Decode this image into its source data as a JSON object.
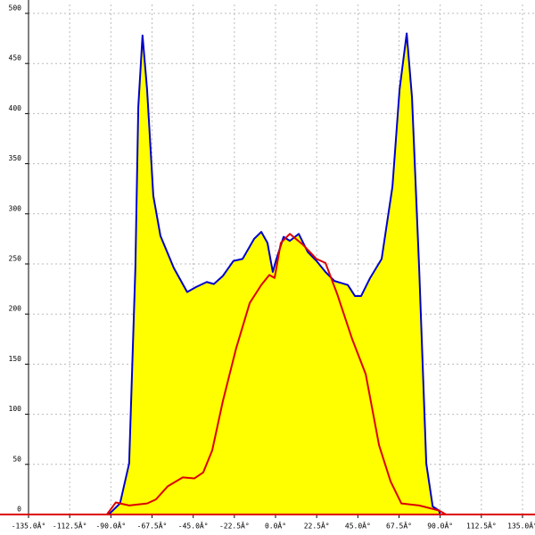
{
  "chart_data": {
    "type": "area-line",
    "xlim": [
      -135,
      135
    ],
    "ylim": [
      0,
      500
    ],
    "xticks": [
      {
        "value": -135,
        "label": "-135.0Â°"
      },
      {
        "value": -112.5,
        "label": "-112.5Â°"
      },
      {
        "value": -90,
        "label": "-90.0Â°"
      },
      {
        "value": -67.5,
        "label": "-67.5Â°"
      },
      {
        "value": -45,
        "label": "-45.0Â°"
      },
      {
        "value": -22.5,
        "label": "-22.5Â°"
      },
      {
        "value": 0,
        "label": "0.0Â°"
      },
      {
        "value": 22.5,
        "label": "22.5Â°"
      },
      {
        "value": 45,
        "label": "45.0Â°"
      },
      {
        "value": 67.5,
        "label": "67.5Â°"
      },
      {
        "value": 90,
        "label": "90.0Â°"
      },
      {
        "value": 112.5,
        "label": "112.5Â°"
      },
      {
        "value": 135,
        "label": "135.0Â°"
      }
    ],
    "yticks": [
      0,
      50,
      100,
      150,
      200,
      250,
      300,
      350,
      400,
      450,
      500
    ],
    "grid": true,
    "axis_color": "#dd0000",
    "series": [
      {
        "color": "#0000cc",
        "fill": "#ffff00",
        "x": [
          -91.2,
          -85,
          -80,
          -76.6,
          -75,
          -72.7,
          -70.2,
          -66.8,
          -62.9,
          -55.6,
          -48.3,
          -43.4,
          -37.6,
          -33.7,
          -28.8,
          -23,
          -18,
          -11.7,
          -7.8,
          -4.4,
          -1.5,
          0.5,
          4.4,
          7.8,
          12.7,
          17.6,
          22.4,
          27.3,
          32.2,
          39.5,
          43.4,
          46.8,
          51.7,
          58,
          63.9,
          67.8,
          71.7,
          74.6,
          78.5,
          82.4,
          85.9,
          89.3,
          90
        ],
        "values": [
          0,
          11,
          51,
          246,
          407,
          478,
          424,
          318,
          278,
          246,
          222,
          227,
          232,
          230,
          238,
          253,
          255,
          275,
          282,
          271,
          242,
          255,
          277,
          273,
          280,
          262,
          253,
          242,
          233,
          229,
          218,
          218,
          236,
          255,
          327,
          424,
          480,
          416,
          246,
          51,
          8,
          4,
          0
        ]
      },
      {
        "color": "#dd0000",
        "x": [
          -92.2,
          -87.3,
          -80,
          -70.2,
          -65.4,
          -59,
          -50.7,
          -44.4,
          -39.5,
          -34.6,
          -28.8,
          -21.5,
          -14.1,
          -7.8,
          -3.4,
          -0.5,
          2.9,
          7.8,
          15.1,
          22.4,
          27.3,
          33.7,
          41.9,
          49.3,
          56.6,
          62.9,
          68.8,
          78.5,
          89.3,
          93.2
        ],
        "values": [
          0,
          12,
          9,
          11,
          15,
          28,
          37,
          36,
          42,
          64,
          113,
          166,
          211,
          229,
          239,
          236,
          271,
          280,
          269,
          255,
          251,
          220,
          175,
          140,
          69,
          33,
          11,
          9,
          4,
          0
        ]
      }
    ]
  }
}
